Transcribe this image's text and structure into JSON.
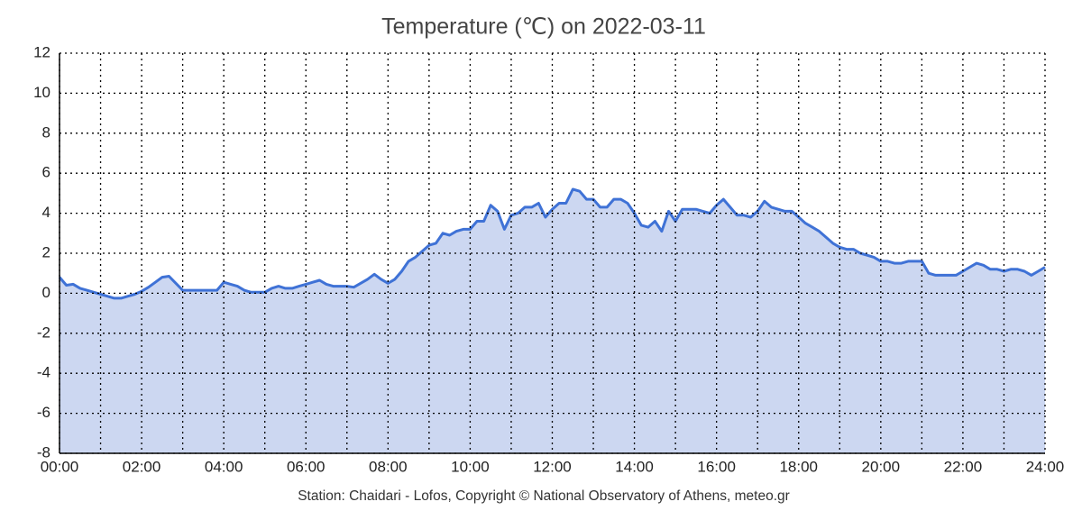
{
  "chart_data": {
    "type": "area",
    "title": "Temperature (℃) on 2022-03-11",
    "footer": "Station: Chaidari - Lofos, Copyright © National Observatory of Athens, meteo.gr",
    "x": [
      0,
      10,
      20,
      30,
      40,
      50,
      60,
      70,
      80,
      90,
      100,
      110,
      120,
      130,
      140,
      150,
      160,
      170,
      180,
      190,
      200,
      210,
      220,
      230,
      240,
      250,
      260,
      270,
      280,
      290,
      300,
      310,
      320,
      330,
      340,
      350,
      360,
      370,
      380,
      390,
      400,
      410,
      420,
      430,
      440,
      450,
      460,
      470,
      480,
      490,
      500,
      510,
      520,
      530,
      540,
      550,
      560,
      570,
      580,
      590,
      600,
      610,
      620,
      630,
      640,
      650,
      660,
      670,
      680,
      690,
      700,
      710,
      720,
      730,
      740,
      750,
      760,
      770,
      780,
      790,
      800,
      810,
      820,
      830,
      840,
      850,
      860,
      870,
      880,
      890,
      900,
      910,
      920,
      930,
      940,
      950,
      960,
      970,
      980,
      990,
      1000,
      1010,
      1020,
      1030,
      1040,
      1050,
      1060,
      1070,
      1080,
      1090,
      1100,
      1110,
      1120,
      1130,
      1140,
      1150,
      1160,
      1170,
      1180,
      1190,
      1200,
      1210,
      1220,
      1230,
      1240,
      1250,
      1260,
      1270,
      1280,
      1290,
      1300,
      1310,
      1320,
      1330,
      1340,
      1350,
      1360,
      1370,
      1380,
      1390,
      1400,
      1410,
      1420,
      1430,
      1440
    ],
    "series": [
      {
        "name": "Temperature",
        "color": "#3f72d6",
        "fill": "#ccd7f1",
        "values": [
          0.8,
          0.4,
          0.45,
          0.25,
          0.15,
          0.05,
          -0.05,
          -0.15,
          -0.25,
          -0.25,
          -0.15,
          -0.05,
          0.1,
          0.3,
          0.55,
          0.8,
          0.85,
          0.5,
          0.15,
          0.15,
          0.15,
          0.15,
          0.15,
          0.15,
          0.55,
          0.45,
          0.35,
          0.15,
          0.05,
          0.05,
          0.05,
          0.25,
          0.35,
          0.25,
          0.25,
          0.35,
          0.45,
          0.55,
          0.65,
          0.45,
          0.35,
          0.35,
          0.35,
          0.3,
          0.5,
          0.7,
          0.95,
          0.7,
          0.5,
          0.7,
          1.1,
          1.6,
          1.8,
          2.1,
          2.4,
          2.5,
          3.0,
          2.9,
          3.1,
          3.2,
          3.2,
          3.6,
          3.6,
          4.4,
          4.1,
          3.2,
          3.9,
          4.0,
          4.3,
          4.3,
          4.5,
          3.8,
          4.2,
          4.5,
          4.5,
          5.2,
          5.1,
          4.7,
          4.7,
          4.3,
          4.3,
          4.7,
          4.7,
          4.5,
          4.0,
          3.4,
          3.3,
          3.6,
          3.1,
          4.1,
          3.6,
          4.2,
          4.2,
          4.2,
          4.1,
          4.0,
          4.4,
          4.7,
          4.3,
          3.9,
          3.9,
          3.8,
          4.1,
          4.6,
          4.3,
          4.2,
          4.1,
          4.1,
          3.8,
          3.5,
          3.3,
          3.1,
          2.8,
          2.5,
          2.3,
          2.2,
          2.2,
          2.0,
          1.9,
          1.8,
          1.6,
          1.6,
          1.5,
          1.5,
          1.6,
          1.6,
          1.6,
          1.0,
          0.9,
          0.9,
          0.9,
          0.9,
          1.1,
          1.3,
          1.5,
          1.4,
          1.2,
          1.2,
          1.1,
          1.2,
          1.2,
          1.1,
          0.9,
          1.1,
          1.3
        ]
      }
    ],
    "xlim": [
      0,
      1440
    ],
    "xticks": [
      {
        "value": 0,
        "label": "00:00"
      },
      {
        "value": 120,
        "label": "02:00"
      },
      {
        "value": 240,
        "label": "04:00"
      },
      {
        "value": 360,
        "label": "06:00"
      },
      {
        "value": 480,
        "label": "08:00"
      },
      {
        "value": 600,
        "label": "10:00"
      },
      {
        "value": 720,
        "label": "12:00"
      },
      {
        "value": 840,
        "label": "14:00"
      },
      {
        "value": 960,
        "label": "16:00"
      },
      {
        "value": 1080,
        "label": "18:00"
      },
      {
        "value": 1200,
        "label": "20:00"
      },
      {
        "value": 1320,
        "label": "22:00"
      },
      {
        "value": 1440,
        "label": "24:00"
      }
    ],
    "xminor_ticks": [
      60,
      180,
      300,
      420,
      540,
      660,
      780,
      900,
      1020,
      1140,
      1260,
      1380
    ],
    "ylim": [
      -8,
      12
    ],
    "yticks": [
      -8,
      -6,
      -4,
      -2,
      0,
      2,
      4,
      6,
      8,
      10,
      12
    ],
    "grid": true
  }
}
